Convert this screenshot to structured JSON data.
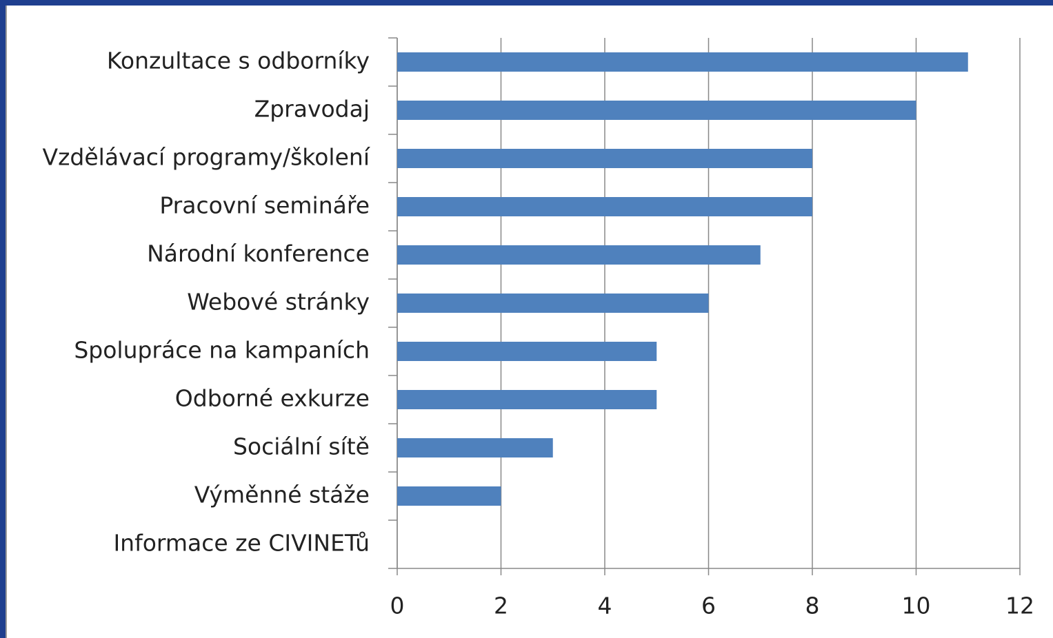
{
  "chart_data": {
    "type": "bar",
    "orientation": "horizontal",
    "categories": [
      "Konzultace s odborníky",
      "Zpravodaj",
      "Vzdělávací programy/školení",
      "Pracovní semináře",
      "Národní konference",
      "Webové stránky",
      "Spolupráce na kampaních",
      "Odborné exkurze",
      "Sociální sítě",
      "Výměnné stáže",
      "Informace ze CIVINETů"
    ],
    "values": [
      11,
      10,
      8,
      8,
      7,
      6,
      5,
      5,
      3,
      2,
      0
    ],
    "color": "#4f81bd",
    "xlim": [
      0,
      12
    ],
    "xticks": [
      0,
      2,
      4,
      6,
      8,
      10,
      12
    ],
    "grid": true
  }
}
